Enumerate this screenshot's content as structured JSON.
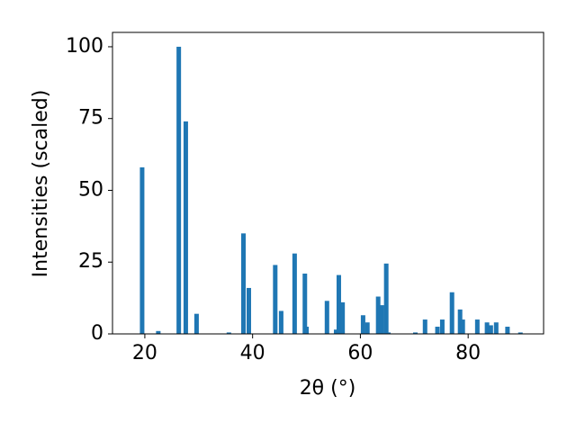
{
  "chart_data": {
    "type": "bar",
    "xlabel": "2θ (°)",
    "ylabel": "Intensities (scaled)",
    "x": [
      19.5,
      22.5,
      26.3,
      27.6,
      29.6,
      35.6,
      38.3,
      39.3,
      44.2,
      45.3,
      47.8,
      49.7,
      50.0,
      53.8,
      55.5,
      56.0,
      56.7,
      60.5,
      61.3,
      63.3,
      64.0,
      64.8,
      65.2,
      70.2,
      72.0,
      74.3,
      75.2,
      77.0,
      78.5,
      79.0,
      81.7,
      83.5,
      84.2,
      85.2,
      87.3,
      89.7
    ],
    "values": [
      58,
      1,
      100,
      74,
      7,
      0.5,
      35,
      16,
      24,
      8,
      28,
      21,
      2.5,
      11.5,
      1.5,
      20.5,
      11,
      6.5,
      4,
      13,
      10,
      24.5,
      0.5,
      0.5,
      5,
      2.5,
      5,
      14.5,
      8.5,
      5,
      5,
      4,
      3,
      4,
      2.5,
      0.5
    ],
    "color": "#1f77b4",
    "xlim": [
      14,
      94
    ],
    "xticks": [
      20,
      40,
      60,
      80
    ],
    "ylim": [
      0,
      105
    ],
    "yticks": [
      0,
      25,
      50,
      75,
      100
    ],
    "grid": false
  }
}
